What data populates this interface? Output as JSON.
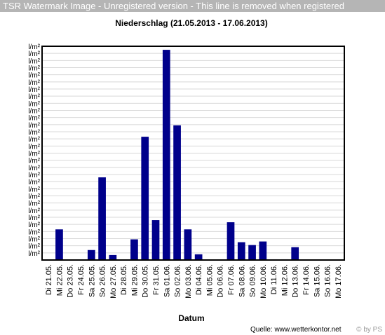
{
  "watermark": "TSR Watermark Image - Unregistered version - This line is removed when registered",
  "colors": {
    "bar": "#00008b",
    "axis": "#000000",
    "grid": "#d8d8d8",
    "background": "#ffffff"
  },
  "chart_data": {
    "type": "bar",
    "title": "Niederschlag (21.05.2013 - 17.06.2013)",
    "xlabel": "Datum",
    "ylabel": "",
    "source": "Quelle: www.wetterkontor.net",
    "credit": "© by PS",
    "y_tick_label": "l/m²",
    "y_tick_count": 30,
    "ylim": [
      0,
      30
    ],
    "grid": true,
    "categories": [
      "Di 21.05.",
      "Mi 22.05.",
      "Do 23.05.",
      "Fr 24.05.",
      "Sa 25.05.",
      "So 26.05.",
      "Mo 27.05.",
      "Di 28.05.",
      "Mi 29.05.",
      "Do 30.05.",
      "Fr 31.05.",
      "Sa 01.06.",
      "So 02.06.",
      "Mo 03.06.",
      "Di 04.06.",
      "Mi 05.06.",
      "Do 06.06.",
      "Fr 07.06.",
      "Sa 08.06.",
      "So 09.06.",
      "Mo 10.06.",
      "Di 11.06.",
      "Mi 12.06.",
      "Do 13.06.",
      "Fr 14.06.",
      "Sa 15.06.",
      "So 16.06.",
      "Mo 17.06."
    ],
    "values": [
      0,
      4.3,
      0,
      0,
      1.4,
      11.6,
      0.7,
      0,
      2.9,
      17.3,
      5.6,
      29.5,
      18.9,
      4.3,
      0.8,
      0,
      0,
      5.3,
      2.5,
      2.1,
      2.6,
      0.1,
      0.1,
      1.8,
      0,
      0,
      0,
      0
    ]
  }
}
